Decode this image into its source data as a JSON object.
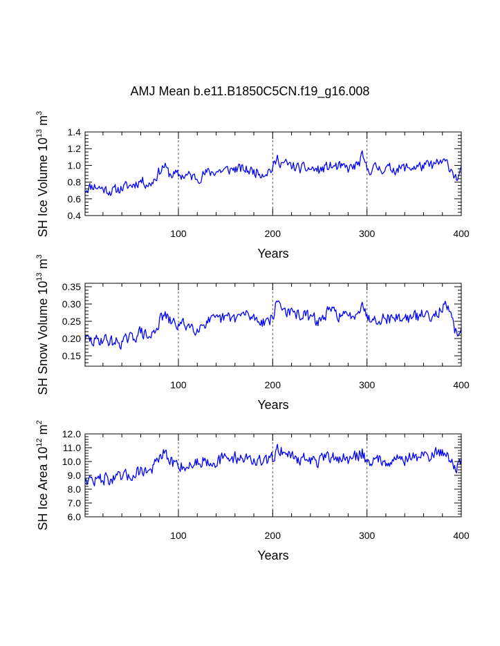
{
  "title": "AMJ Mean b.e11.B1850C5CN.f19_g16.008",
  "colors": {
    "series": "#0000ff",
    "axes": "#000000",
    "gridline": "#555555",
    "background": "#ffffff"
  },
  "chart_data": [
    {
      "type": "line",
      "name": "ice-volume",
      "ylabel": {
        "main": "SH Ice Volume 10",
        "sup1": "13",
        "unit": " m",
        "sup2": "3"
      },
      "xlabel": "Years",
      "xlim": [
        1,
        400
      ],
      "ylim": [
        0.4,
        1.4
      ],
      "xticks": [
        100,
        200,
        300,
        400
      ],
      "xtick_labels": [
        "100",
        "200",
        "300",
        "400"
      ],
      "yticks": [
        0.4,
        0.6,
        0.8,
        1.0,
        1.2,
        1.4
      ],
      "ytick_labels": [
        "0.4",
        "0.6",
        "0.8",
        "1.0",
        "1.2",
        "1.4"
      ],
      "ydecimals": 1,
      "grid_x": [
        100,
        200,
        300
      ],
      "series": [
        {
          "name": "SH Ice Volume",
          "color": "#0000ff",
          "anchors": [
            [
              1,
              0.72
            ],
            [
              10,
              0.76
            ],
            [
              20,
              0.72
            ],
            [
              30,
              0.69
            ],
            [
              40,
              0.73
            ],
            [
              50,
              0.76
            ],
            [
              60,
              0.82
            ],
            [
              70,
              0.77
            ],
            [
              80,
              0.93
            ],
            [
              85,
              1.0
            ],
            [
              90,
              0.9
            ],
            [
              100,
              0.88
            ],
            [
              110,
              0.88
            ],
            [
              120,
              0.85
            ],
            [
              130,
              0.91
            ],
            [
              140,
              0.93
            ],
            [
              150,
              0.94
            ],
            [
              160,
              0.96
            ],
            [
              170,
              0.95
            ],
            [
              180,
              0.93
            ],
            [
              190,
              0.91
            ],
            [
              200,
              0.96
            ],
            [
              205,
              1.08
            ],
            [
              210,
              1.03
            ],
            [
              220,
              0.99
            ],
            [
              230,
              0.96
            ],
            [
              240,
              0.96
            ],
            [
              250,
              0.94
            ],
            [
              260,
              0.99
            ],
            [
              270,
              0.98
            ],
            [
              280,
              0.96
            ],
            [
              290,
              1.0
            ],
            [
              295,
              1.1
            ],
            [
              300,
              0.95
            ],
            [
              310,
              0.97
            ],
            [
              320,
              0.96
            ],
            [
              330,
              0.96
            ],
            [
              340,
              0.97
            ],
            [
              350,
              0.98
            ],
            [
              360,
              0.99
            ],
            [
              370,
              1.0
            ],
            [
              380,
              1.04
            ],
            [
              385,
              1.02
            ],
            [
              390,
              0.95
            ],
            [
              395,
              0.84
            ],
            [
              400,
              0.92
            ]
          ],
          "noise": 0.09,
          "seed": 11,
          "clip": [
            0.52,
            1.22
          ]
        }
      ]
    },
    {
      "type": "line",
      "name": "snow-volume",
      "ylabel": {
        "main": "SH Snow Volume 10",
        "sup1": "13",
        "unit": " m",
        "sup2": "3"
      },
      "xlabel": "Years",
      "xlim": [
        1,
        400
      ],
      "ylim": [
        0.12,
        0.36
      ],
      "xticks": [
        100,
        200,
        300,
        400
      ],
      "xtick_labels": [
        "100",
        "200",
        "300",
        "400"
      ],
      "yticks": [
        0.15,
        0.2,
        0.25,
        0.3,
        0.35
      ],
      "ytick_labels": [
        "0.15",
        "0.20",
        "0.25",
        "0.30",
        "0.35"
      ],
      "ydecimals": 2,
      "grid_x": [
        100,
        200,
        300
      ],
      "series": [
        {
          "name": "SH Snow Volume",
          "color": "#0000ff",
          "anchors": [
            [
              1,
              0.2
            ],
            [
              10,
              0.19
            ],
            [
              20,
              0.2
            ],
            [
              30,
              0.19
            ],
            [
              40,
              0.19
            ],
            [
              50,
              0.2
            ],
            [
              60,
              0.22
            ],
            [
              70,
              0.2
            ],
            [
              80,
              0.25
            ],
            [
              85,
              0.27
            ],
            [
              90,
              0.25
            ],
            [
              100,
              0.24
            ],
            [
              110,
              0.24
            ],
            [
              120,
              0.23
            ],
            [
              130,
              0.25
            ],
            [
              140,
              0.25
            ],
            [
              150,
              0.26
            ],
            [
              160,
              0.26
            ],
            [
              170,
              0.27
            ],
            [
              180,
              0.26
            ],
            [
              190,
              0.25
            ],
            [
              200,
              0.26
            ],
            [
              205,
              0.31
            ],
            [
              210,
              0.29
            ],
            [
              220,
              0.27
            ],
            [
              230,
              0.27
            ],
            [
              240,
              0.26
            ],
            [
              250,
              0.25
            ],
            [
              260,
              0.28
            ],
            [
              270,
              0.27
            ],
            [
              280,
              0.26
            ],
            [
              290,
              0.28
            ],
            [
              295,
              0.31
            ],
            [
              300,
              0.26
            ],
            [
              310,
              0.26
            ],
            [
              320,
              0.26
            ],
            [
              330,
              0.26
            ],
            [
              340,
              0.26
            ],
            [
              350,
              0.26
            ],
            [
              360,
              0.27
            ],
            [
              370,
              0.27
            ],
            [
              380,
              0.29
            ],
            [
              385,
              0.29
            ],
            [
              390,
              0.25
            ],
            [
              395,
              0.21
            ],
            [
              400,
              0.24
            ]
          ],
          "noise": 0.025,
          "seed": 29,
          "clip": [
            0.14,
            0.35
          ]
        }
      ]
    },
    {
      "type": "line",
      "name": "ice-area",
      "ylabel": {
        "main": "SH Ice Area 10",
        "sup1": "12",
        "unit": " m",
        "sup2": "2"
      },
      "xlabel": "Years",
      "xlim": [
        1,
        400
      ],
      "ylim": [
        6.0,
        12.0
      ],
      "xticks": [
        100,
        200,
        300,
        400
      ],
      "xtick_labels": [
        "100",
        "200",
        "300",
        "400"
      ],
      "yticks": [
        6.0,
        7.0,
        8.0,
        9.0,
        10.0,
        11.0,
        12.0
      ],
      "ytick_labels": [
        "6.0",
        "7.0",
        "8.0",
        "9.0",
        "10.0",
        "11.0",
        "12.0"
      ],
      "ydecimals": 1,
      "grid_x": [
        100,
        200,
        300
      ],
      "series": [
        {
          "name": "SH Ice Area",
          "color": "#0000ff",
          "anchors": [
            [
              1,
              8.8
            ],
            [
              10,
              8.6
            ],
            [
              20,
              8.8
            ],
            [
              30,
              8.7
            ],
            [
              40,
              8.8
            ],
            [
              50,
              9.0
            ],
            [
              60,
              9.4
            ],
            [
              70,
              9.3
            ],
            [
              80,
              10.2
            ],
            [
              85,
              10.6
            ],
            [
              90,
              10.0
            ],
            [
              100,
              9.8
            ],
            [
              110,
              9.6
            ],
            [
              120,
              10.0
            ],
            [
              130,
              10.1
            ],
            [
              140,
              10.0
            ],
            [
              150,
              10.2
            ],
            [
              160,
              10.3
            ],
            [
              170,
              10.3
            ],
            [
              180,
              10.1
            ],
            [
              190,
              9.9
            ],
            [
              200,
              10.2
            ],
            [
              205,
              11.0
            ],
            [
              210,
              10.8
            ],
            [
              220,
              10.4
            ],
            [
              230,
              10.2
            ],
            [
              240,
              10.1
            ],
            [
              250,
              10.0
            ],
            [
              260,
              10.3
            ],
            [
              270,
              10.3
            ],
            [
              280,
              10.1
            ],
            [
              290,
              10.4
            ],
            [
              295,
              10.7
            ],
            [
              300,
              10.0
            ],
            [
              310,
              10.1
            ],
            [
              320,
              10.1
            ],
            [
              330,
              10.2
            ],
            [
              340,
              10.2
            ],
            [
              350,
              10.3
            ],
            [
              360,
              10.4
            ],
            [
              370,
              10.5
            ],
            [
              380,
              10.7
            ],
            [
              385,
              10.6
            ],
            [
              390,
              10.0
            ],
            [
              395,
              9.5
            ],
            [
              400,
              9.9
            ]
          ],
          "noise": 0.65,
          "seed": 47,
          "clip": [
            7.6,
            11.9
          ]
        }
      ]
    }
  ]
}
